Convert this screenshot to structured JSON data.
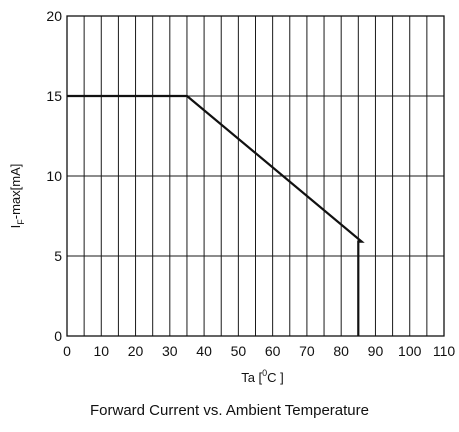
{
  "chart_data": {
    "type": "line",
    "title": "Forward Current vs. Ambient Temperature",
    "xlabel": {
      "main": "Ta [",
      "sup": "0",
      "tail": "C ]"
    },
    "ylabel": {
      "main": "I",
      "sub": "F",
      "tail": "-max[mA]"
    },
    "xlim": [
      0,
      110
    ],
    "ylim": [
      0,
      20
    ],
    "x_ticks": [
      0,
      10,
      20,
      30,
      40,
      50,
      60,
      70,
      80,
      90,
      100,
      110
    ],
    "y_ticks": [
      0,
      5,
      10,
      15,
      20
    ],
    "x_minor_step": 5,
    "grid": true,
    "legend": "none",
    "series": [
      {
        "x": [
          0,
          35,
          86,
          86,
          85,
          85
        ],
        "y": [
          15,
          15,
          5.9,
          5.9,
          5.9,
          0
        ]
      }
    ],
    "line_color": "#111111",
    "grid_color": "#1a1a1a"
  }
}
